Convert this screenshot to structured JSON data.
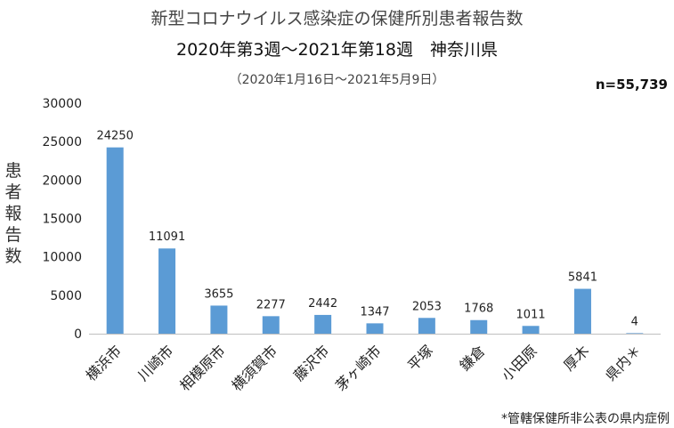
{
  "title_line1": "新型コロナウイルス感染症の保健所別患者報告数",
  "title_line2": "2020年第3週～2021年第18週　神奈川県",
  "subtitle": "（2020年1月16日～2021年5月9日）",
  "n_label": "n=55,739",
  "footnote": "*管轄保健所非公表の県内症例",
  "colors": {
    "bar": "#5b9bd5",
    "axis": "#bfbfbf",
    "text": "#222222"
  },
  "chart_data": {
    "type": "bar",
    "title": "新型コロナウイルス感染症の保健所別患者報告数",
    "xlabel": "",
    "ylabel": "患者報告数",
    "ylim": [
      0,
      30000
    ],
    "yticks": [
      0,
      5000,
      10000,
      15000,
      20000,
      25000,
      30000
    ],
    "categories": [
      "横浜市",
      "川崎市",
      "相模原市",
      "横須賀市",
      "藤沢市",
      "茅ヶ崎市",
      "平塚",
      "鎌倉",
      "小田原",
      "厚木",
      "県内＊"
    ],
    "values": [
      24250,
      11091,
      3655,
      2277,
      2442,
      1347,
      2053,
      1768,
      1011,
      5841,
      4
    ],
    "data_labels": true,
    "grid": false,
    "legend": "none"
  }
}
